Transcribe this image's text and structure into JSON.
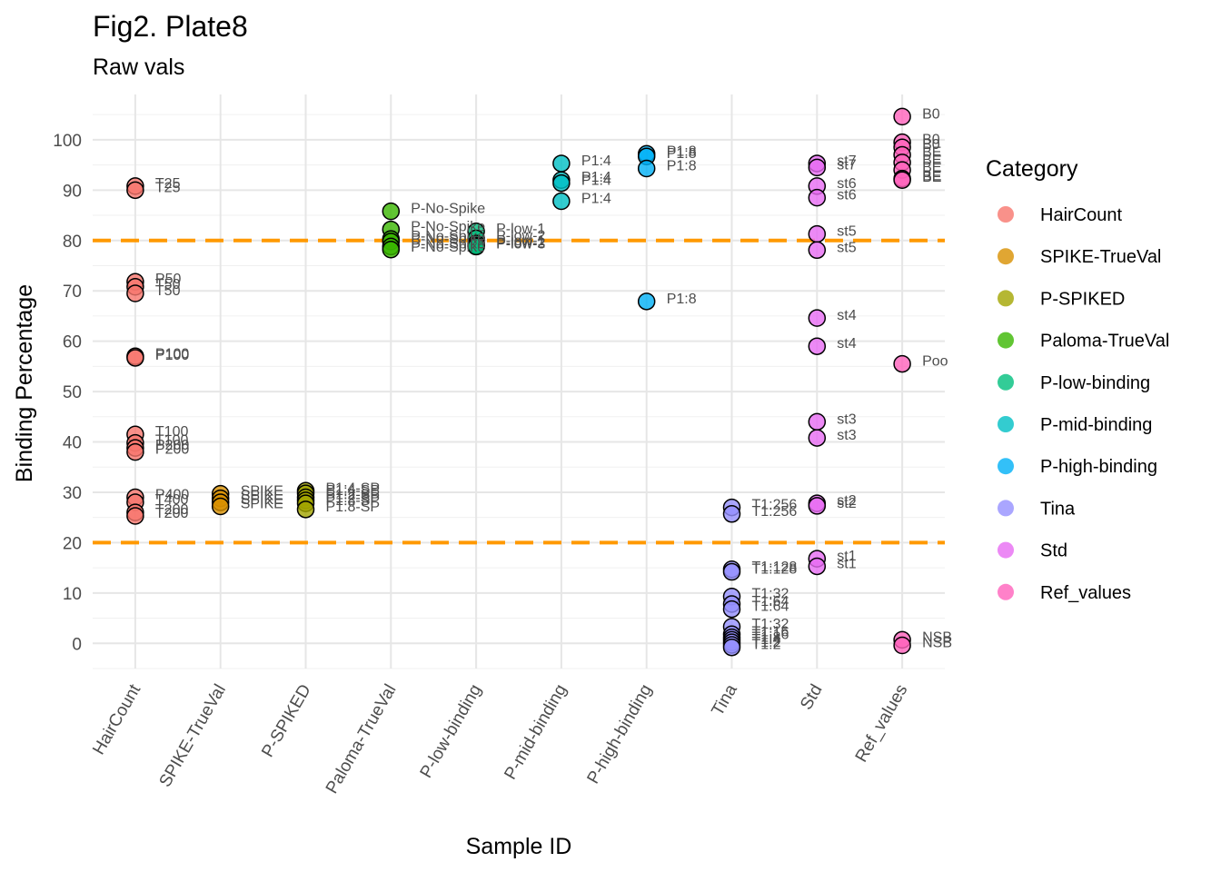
{
  "chart_data": {
    "type": "scatter",
    "title": "Fig2. Plate8",
    "subtitle": "Raw vals",
    "xlabel": "Sample ID",
    "ylabel": "Binding Percentage",
    "categories": [
      "HairCount",
      "SPIKE-TrueVal",
      "P-SPIKED",
      "Paloma-TrueVal",
      "P-low-binding",
      "P-mid-binding",
      "P-high-binding",
      "Tina",
      "Std",
      "Ref_values"
    ],
    "ylim": [
      -5,
      109
    ],
    "yticks": [
      0,
      10,
      20,
      30,
      40,
      50,
      60,
      70,
      80,
      90,
      100
    ],
    "hlines": [
      20,
      80
    ],
    "hline_color": "#FF9900",
    "grid": true,
    "legend": {
      "title": "Category",
      "placement": "right",
      "items": [
        {
          "label": "HairCount",
          "color": "#F8766D"
        },
        {
          "label": "SPIKE-TrueVal",
          "color": "#D89000"
        },
        {
          "label": "P-SPIKED",
          "color": "#A3A500"
        },
        {
          "label": "Paloma-TrueVal",
          "color": "#39B600"
        },
        {
          "label": "P-low-binding",
          "color": "#00BF7D"
        },
        {
          "label": "P-mid-binding",
          "color": "#00BFC4"
        },
        {
          "label": "P-high-binding",
          "color": "#00B0F6"
        },
        {
          "label": "Tina",
          "color": "#9590FF"
        },
        {
          "label": "Std",
          "color": "#E76BF3"
        },
        {
          "label": "Ref_values",
          "color": "#FF62BC"
        }
      ]
    },
    "points": [
      {
        "cat": 0,
        "y": 90.8,
        "label": "T25"
      },
      {
        "cat": 0,
        "y": 90.0,
        "label": "T25"
      },
      {
        "cat": 0,
        "y": 71.8,
        "label": "P50"
      },
      {
        "cat": 0,
        "y": 70.8,
        "label": "T50"
      },
      {
        "cat": 0,
        "y": 69.5,
        "label": "T50"
      },
      {
        "cat": 0,
        "y": 57.0,
        "label": "P100"
      },
      {
        "cat": 0,
        "y": 56.7,
        "label": "P100"
      },
      {
        "cat": 0,
        "y": 41.5,
        "label": "T100"
      },
      {
        "cat": 0,
        "y": 39.8,
        "label": "T100"
      },
      {
        "cat": 0,
        "y": 38.8,
        "label": "P200"
      },
      {
        "cat": 0,
        "y": 38.0,
        "label": "P200"
      },
      {
        "cat": 0,
        "y": 29.0,
        "label": "P400"
      },
      {
        "cat": 0,
        "y": 28.0,
        "label": "T400"
      },
      {
        "cat": 0,
        "y": 26.0,
        "label": "T200"
      },
      {
        "cat": 0,
        "y": 25.3,
        "label": "T200"
      },
      {
        "cat": 1,
        "y": 29.7,
        "label": "SPIKE"
      },
      {
        "cat": 1,
        "y": 28.8,
        "label": "SPIKE"
      },
      {
        "cat": 1,
        "y": 28.0,
        "label": "SPIKE"
      },
      {
        "cat": 1,
        "y": 27.2,
        "label": "SPIKE"
      },
      {
        "cat": 2,
        "y": 30.3,
        "label": "P1:4-SP"
      },
      {
        "cat": 2,
        "y": 29.8,
        "label": "P1:4-SP"
      },
      {
        "cat": 2,
        "y": 29.0,
        "label": "P1:2-SP"
      },
      {
        "cat": 2,
        "y": 28.4,
        "label": "P1:2-SP"
      },
      {
        "cat": 2,
        "y": 27.8,
        "label": "P1:8-SP"
      },
      {
        "cat": 2,
        "y": 26.6,
        "label": "P1:8-SP"
      },
      {
        "cat": 3,
        "y": 85.8,
        "label": "P-No-Spike"
      },
      {
        "cat": 3,
        "y": 82.2,
        "label": "P-No-Spike"
      },
      {
        "cat": 3,
        "y": 80.3,
        "label": "P-No-Spike"
      },
      {
        "cat": 3,
        "y": 79.8,
        "label": "P-No-Spike"
      },
      {
        "cat": 3,
        "y": 78.8,
        "label": "P-No-Spike"
      },
      {
        "cat": 3,
        "y": 78.2,
        "label": "P-No-Spike"
      },
      {
        "cat": 4,
        "y": 81.8,
        "label": "P-low-1"
      },
      {
        "cat": 4,
        "y": 80.4,
        "label": "P-low-2"
      },
      {
        "cat": 4,
        "y": 79.4,
        "label": "P-low-1"
      },
      {
        "cat": 4,
        "y": 79.0,
        "label": "P-low-2"
      },
      {
        "cat": 4,
        "y": 78.8,
        "label": "P-low-3"
      },
      {
        "cat": 5,
        "y": 95.3,
        "label": "P1:4"
      },
      {
        "cat": 5,
        "y": 92.0,
        "label": "P1:4"
      },
      {
        "cat": 5,
        "y": 91.4,
        "label": "P1:4"
      },
      {
        "cat": 5,
        "y": 87.8,
        "label": "P1:4"
      },
      {
        "cat": 6,
        "y": 97.2,
        "label": "P1:8"
      },
      {
        "cat": 6,
        "y": 96.7,
        "label": "P1:8"
      },
      {
        "cat": 6,
        "y": 94.3,
        "label": "P1:8"
      },
      {
        "cat": 6,
        "y": 67.9,
        "label": "P1:8"
      },
      {
        "cat": 7,
        "y": 27.0,
        "label": "T1:256"
      },
      {
        "cat": 7,
        "y": 25.7,
        "label": "T1:256"
      },
      {
        "cat": 7,
        "y": 14.7,
        "label": "T1:128"
      },
      {
        "cat": 7,
        "y": 14.2,
        "label": "T1:128"
      },
      {
        "cat": 7,
        "y": 9.3,
        "label": "T1:32"
      },
      {
        "cat": 7,
        "y": 7.8,
        "label": "T1:64"
      },
      {
        "cat": 7,
        "y": 6.8,
        "label": "T1:64"
      },
      {
        "cat": 7,
        "y": 3.3,
        "label": "T1:32"
      },
      {
        "cat": 7,
        "y": 1.8,
        "label": "T1:16"
      },
      {
        "cat": 7,
        "y": 1.2,
        "label": "T1:16"
      },
      {
        "cat": 7,
        "y": 0.7,
        "label": "T1:8"
      },
      {
        "cat": 7,
        "y": 0.2,
        "label": "T1:4"
      },
      {
        "cat": 7,
        "y": -0.3,
        "label": "T1:2"
      },
      {
        "cat": 7,
        "y": -0.8,
        "label": "T1:2"
      },
      {
        "cat": 8,
        "y": 95.3,
        "label": "st7"
      },
      {
        "cat": 8,
        "y": 94.5,
        "label": "st7"
      },
      {
        "cat": 8,
        "y": 90.8,
        "label": "st6"
      },
      {
        "cat": 8,
        "y": 88.5,
        "label": "st6"
      },
      {
        "cat": 8,
        "y": 81.3,
        "label": "st5"
      },
      {
        "cat": 8,
        "y": 78.1,
        "label": "st5"
      },
      {
        "cat": 8,
        "y": 64.6,
        "label": "st4"
      },
      {
        "cat": 8,
        "y": 59.0,
        "label": "st4"
      },
      {
        "cat": 8,
        "y": 44.0,
        "label": "st3"
      },
      {
        "cat": 8,
        "y": 40.8,
        "label": "st3"
      },
      {
        "cat": 8,
        "y": 27.8,
        "label": "st2"
      },
      {
        "cat": 8,
        "y": 27.3,
        "label": "st2"
      },
      {
        "cat": 8,
        "y": 16.8,
        "label": "st1"
      },
      {
        "cat": 8,
        "y": 15.3,
        "label": "st1"
      },
      {
        "cat": 9,
        "y": 104.6,
        "label": "B0"
      },
      {
        "cat": 9,
        "y": 99.5,
        "label": "B0"
      },
      {
        "cat": 9,
        "y": 98.5,
        "label": "B0"
      },
      {
        "cat": 9,
        "y": 97.0,
        "label": "BE"
      },
      {
        "cat": 9,
        "y": 95.5,
        "label": "BE"
      },
      {
        "cat": 9,
        "y": 94.0,
        "label": "BE"
      },
      {
        "cat": 9,
        "y": 92.3,
        "label": "BE"
      },
      {
        "cat": 9,
        "y": 92.0,
        "label": "BE"
      },
      {
        "cat": 9,
        "y": 55.5,
        "label": "Poo"
      },
      {
        "cat": 9,
        "y": 0.7,
        "label": "NSB"
      },
      {
        "cat": 9,
        "y": -0.4,
        "label": "NSB"
      }
    ]
  }
}
